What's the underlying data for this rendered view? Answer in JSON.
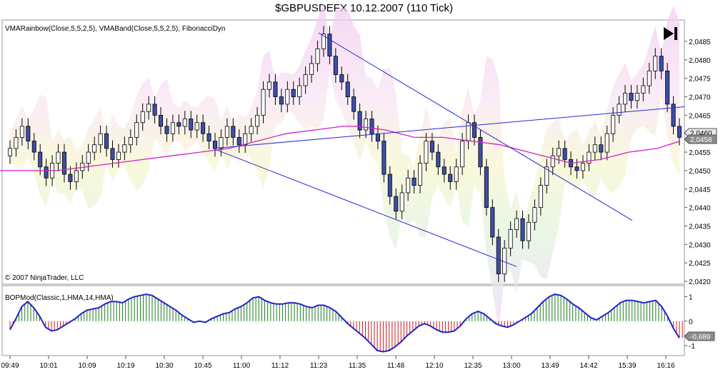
{
  "title": "$GBPUSDEFX  10.12.2007 (110 Tick)",
  "indicator_label": "VMARainbow(Close,5,5,2,5), VMABand(Close,5,5,2,5), FibonacciDyn",
  "copyright": "© 2007 NinjaTrader, LLC",
  "lower_label": "BOPMod(Classic,1,HMA,14,HMA)",
  "price_badge_1": "2,0460",
  "price_badge_2": "2,0458",
  "bop_badge": "-0,689",
  "play_icon": "skip-forward-icon",
  "colors": {
    "up_candle": "#ffffff",
    "down_candle": "#3b4fa8",
    "wick": "#000000",
    "vma_line": "#d020c8",
    "trendline": "#2a2ad0",
    "bop_line": "#2323c8",
    "hist_pos": "#1a7a1a",
    "hist_neg": "#cc1a1a"
  },
  "chart_data": [
    {
      "type": "candlestick",
      "x_labels": [
        "09:49",
        "10:01",
        "10:09",
        "10:19",
        "10:30",
        "10:45",
        "11:00",
        "11:12",
        "11:23",
        "11:35",
        "11:48",
        "12:10",
        "12:35",
        "13:00",
        "13:49",
        "14:42",
        "15:39",
        "16:16"
      ],
      "y_ticks": [
        "2,0485",
        "2,0480",
        "2,0475",
        "2,0470",
        "2,0465",
        "2,0460",
        "2,0455",
        "2,0450",
        "2,0445",
        "2,0440",
        "2,0435",
        "2,0430",
        "2,0425",
        "2,0420"
      ],
      "ylim": [
        2.04195,
        2.0489
      ],
      "close_path": [
        2.0456,
        2.0459,
        2.0462,
        2.0458,
        2.0455,
        2.0451,
        2.0448,
        2.0452,
        2.0455,
        2.0449,
        2.0447,
        2.045,
        2.0452,
        2.0455,
        2.0457,
        2.046,
        2.0456,
        2.0453,
        2.0455,
        2.0457,
        2.0459,
        2.0463,
        2.0466,
        2.0468,
        2.0465,
        2.0462,
        2.046,
        2.0463,
        2.0462,
        2.0464,
        2.0461,
        2.0463,
        2.046,
        2.0458,
        2.0456,
        2.0459,
        2.0462,
        2.0459,
        2.0457,
        2.046,
        2.0462,
        2.0465,
        2.0472,
        2.0474,
        2.047,
        2.0468,
        2.0472,
        2.047,
        2.0473,
        2.0476,
        2.0479,
        2.0483,
        2.0487,
        2.0481,
        2.0476,
        2.0474,
        2.047,
        2.0466,
        2.0461,
        2.0464,
        2.046,
        2.0458,
        2.0449,
        2.0443,
        2.0439,
        2.0444,
        2.0448,
        2.0446,
        2.0452,
        2.0458,
        2.0455,
        2.0451,
        2.0449,
        2.0447,
        2.0451,
        2.0458,
        2.0463,
        2.0459,
        2.0451,
        2.044,
        2.0432,
        2.0422,
        2.0429,
        2.0434,
        2.0437,
        2.0431,
        2.0436,
        2.044,
        2.0446,
        2.0451,
        2.0454,
        2.0456,
        2.0453,
        2.0451,
        2.045,
        2.0452,
        2.0455,
        2.0457,
        2.0455,
        2.046,
        2.0465,
        2.0468,
        2.0471,
        2.0469,
        2.0471,
        2.0473,
        2.0477,
        2.0481,
        2.0477,
        2.0468,
        2.0462,
        2.0459
      ],
      "vma_line": [
        [
          0,
          2.045
        ],
        [
          40,
          2.045
        ],
        [
          80,
          2.045
        ],
        [
          120,
          2.0451
        ],
        [
          160,
          2.0452
        ],
        [
          200,
          2.0453
        ],
        [
          240,
          2.0454
        ],
        [
          280,
          2.0455
        ],
        [
          320,
          2.0456
        ],
        [
          360,
          2.0458
        ],
        [
          400,
          2.046
        ],
        [
          440,
          2.0461
        ],
        [
          480,
          2.0462
        ],
        [
          500,
          2.0462
        ],
        [
          540,
          2.0461
        ],
        [
          580,
          2.0459
        ],
        [
          620,
          2.0459
        ],
        [
          660,
          2.0458
        ],
        [
          700,
          2.0457
        ],
        [
          740,
          2.0455
        ],
        [
          780,
          2.0453
        ],
        [
          800,
          2.0452
        ],
        [
          840,
          2.0453
        ],
        [
          880,
          2.0455
        ],
        [
          920,
          2.0456
        ],
        [
          952,
          2.0458
        ]
      ],
      "trendlines": [
        {
          "from": [
            298,
            2.0456
          ],
          "to": [
            958,
            2.04673
          ]
        },
        {
          "from": [
            298,
            2.0456
          ],
          "to": [
            723,
            2.0424
          ]
        },
        {
          "from": [
            446,
            2.04873
          ],
          "to": [
            885,
            2.04365
          ]
        }
      ]
    },
    {
      "type": "line",
      "name": "BOPMod",
      "y_ticks": [
        "1",
        "0",
        "-1"
      ],
      "ylim": [
        -1.35,
        1.25
      ],
      "values": [
        -0.35,
        0.1,
        0.6,
        0.8,
        0.55,
        0.2,
        -0.25,
        -0.4,
        -0.35,
        -0.2,
        -0.05,
        0.1,
        0.3,
        0.45,
        0.5,
        0.55,
        0.7,
        0.8,
        0.8,
        0.75,
        0.9,
        1.0,
        1.05,
        1.1,
        1.05,
        0.9,
        0.75,
        0.6,
        0.45,
        0.25,
        0.1,
        -0.05,
        0.0,
        -0.05,
        0.1,
        0.2,
        0.3,
        0.35,
        0.5,
        0.6,
        0.75,
        0.95,
        1.0,
        0.85,
        0.75,
        0.7,
        0.7,
        0.75,
        0.75,
        0.7,
        0.6,
        0.55,
        0.65,
        0.65,
        0.55,
        0.4,
        0.15,
        -0.1,
        -0.3,
        -0.5,
        -0.7,
        -0.95,
        -1.2,
        -1.25,
        -1.2,
        -1.05,
        -0.85,
        -0.6,
        -0.4,
        -0.2,
        -0.1,
        -0.2,
        -0.35,
        -0.45,
        -0.45,
        -0.4,
        -0.2,
        0.1,
        0.3,
        0.4,
        0.3,
        0.1,
        -0.1,
        -0.2,
        -0.25,
        -0.15,
        0.0,
        0.15,
        0.3,
        0.55,
        0.8,
        1.0,
        1.1,
        1.05,
        0.9,
        0.7,
        0.55,
        0.35,
        0.15,
        0.05,
        0.2,
        0.35,
        0.55,
        0.75,
        0.85,
        0.85,
        0.8,
        0.75,
        0.8,
        0.85,
        0.6,
        0.2,
        -0.3,
        -0.689
      ]
    }
  ]
}
